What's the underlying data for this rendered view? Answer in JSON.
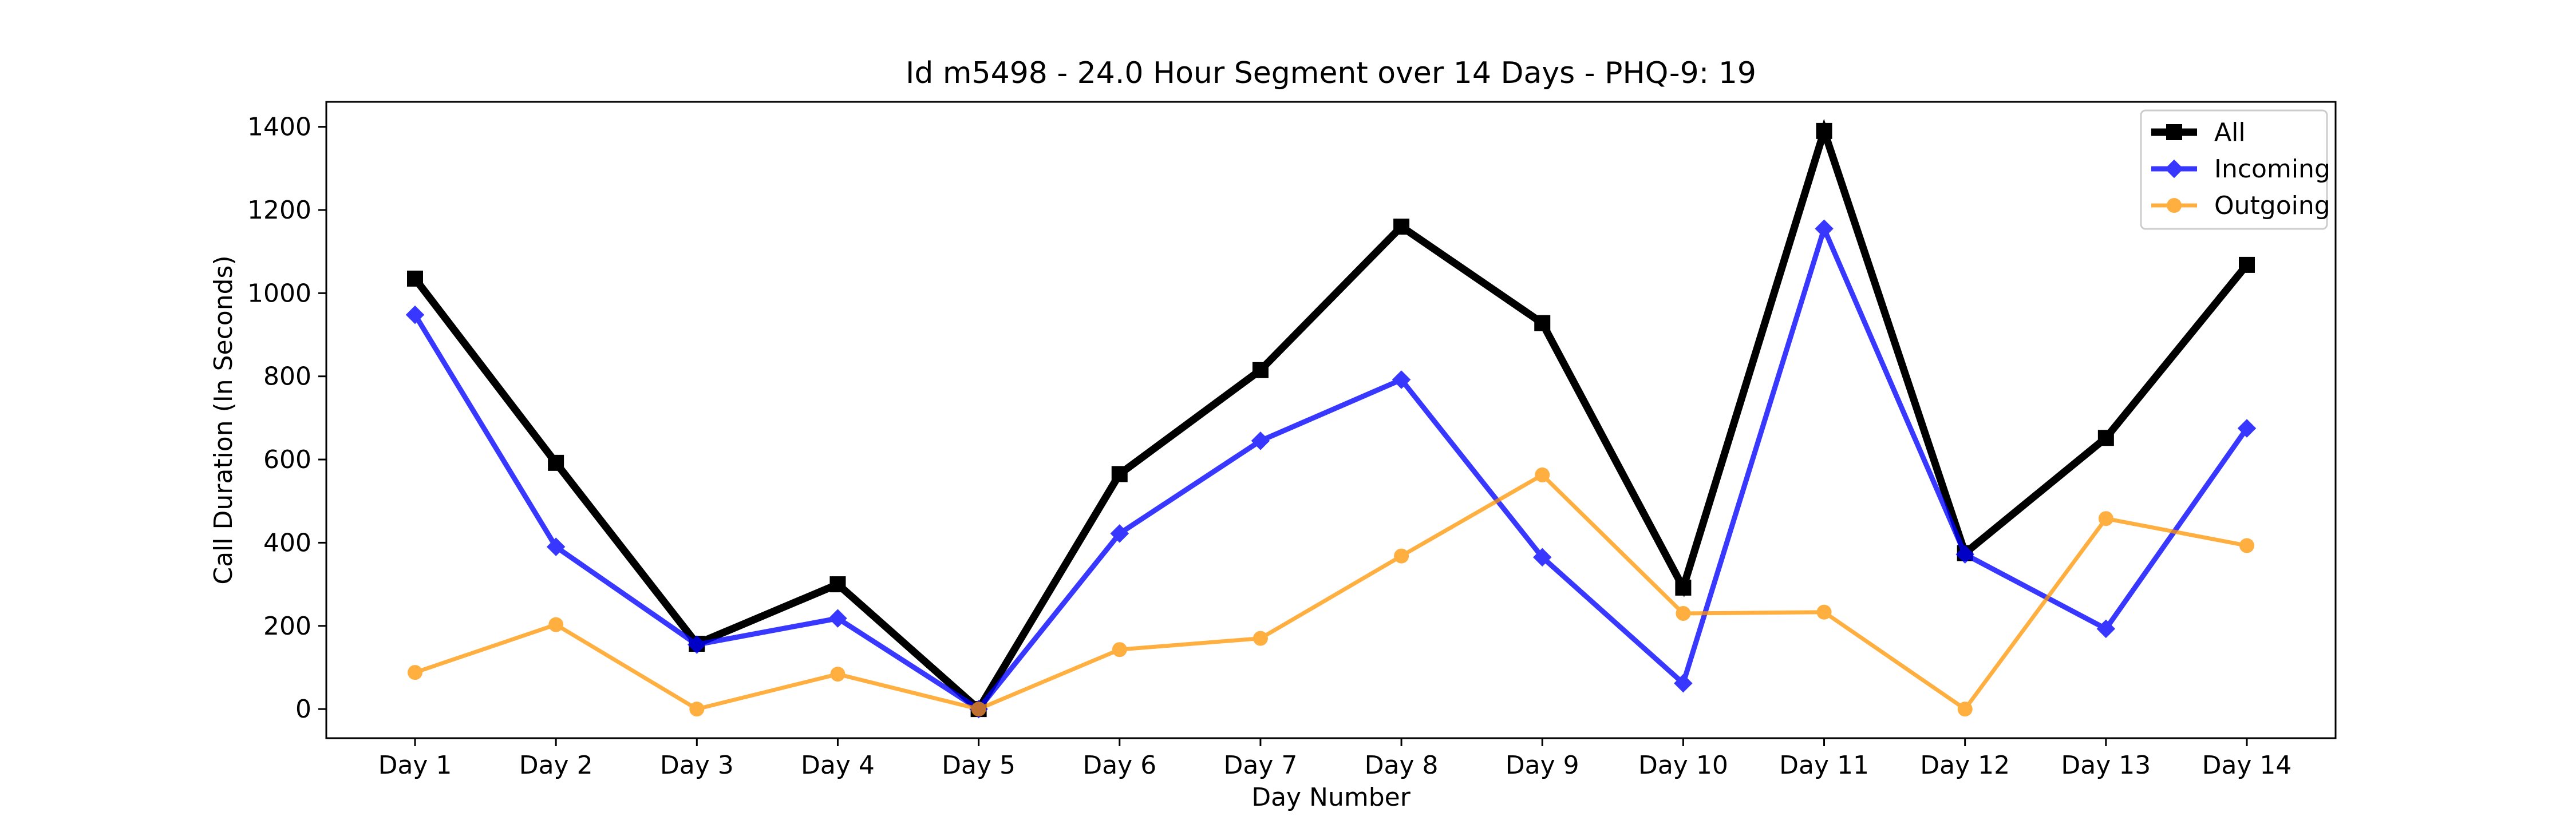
{
  "chart_data": {
    "type": "line",
    "title": "Id m5498 - 24.0 Hour Segment over 14 Days - PHQ-9: 19",
    "xlabel": "Day Number",
    "ylabel": "Call Duration (In Seconds)",
    "categories": [
      "Day 1",
      "Day 2",
      "Day 3",
      "Day 4",
      "Day 5",
      "Day 6",
      "Day 7",
      "Day 8",
      "Day 9",
      "Day 10",
      "Day 11",
      "Day 12",
      "Day 13",
      "Day 14"
    ],
    "ylim": [
      -70,
      1460
    ],
    "yticks": [
      0,
      200,
      400,
      600,
      800,
      1000,
      1200,
      1400
    ],
    "grid": false,
    "legend_position": "top-right",
    "series": [
      {
        "name": "All",
        "color": "#000000",
        "marker": "square",
        "values": [
          1035,
          592,
          157,
          300,
          0,
          565,
          815,
          1160,
          928,
          292,
          1390,
          375,
          652,
          1068
        ]
      },
      {
        "name": "Incoming",
        "color": "#0000ff",
        "marker": "diamond",
        "values": [
          948,
          390,
          155,
          218,
          0,
          422,
          645,
          792,
          365,
          62,
          1155,
          372,
          193,
          675
        ]
      },
      {
        "name": "Outgoing",
        "color": "#ff9500",
        "marker": "circle",
        "values": [
          88,
          203,
          0,
          84,
          0,
          143,
          170,
          368,
          563,
          230,
          233,
          0,
          458,
          393
        ]
      }
    ]
  }
}
